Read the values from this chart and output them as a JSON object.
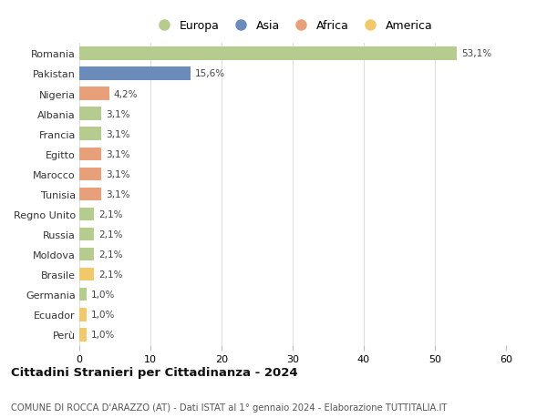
{
  "countries": [
    "Romania",
    "Pakistan",
    "Nigeria",
    "Albania",
    "Francia",
    "Egitto",
    "Marocco",
    "Tunisia",
    "Regno Unito",
    "Russia",
    "Moldova",
    "Brasile",
    "Germania",
    "Ecuador",
    "Perù"
  ],
  "values": [
    53.1,
    15.6,
    4.2,
    3.1,
    3.1,
    3.1,
    3.1,
    3.1,
    2.1,
    2.1,
    2.1,
    2.1,
    1.0,
    1.0,
    1.0
  ],
  "labels": [
    "53,1%",
    "15,6%",
    "4,2%",
    "3,1%",
    "3,1%",
    "3,1%",
    "3,1%",
    "3,1%",
    "2,1%",
    "2,1%",
    "2,1%",
    "2,1%",
    "1,0%",
    "1,0%",
    "1,0%"
  ],
  "continents": [
    "Europa",
    "Asia",
    "Africa",
    "Europa",
    "Europa",
    "Africa",
    "Africa",
    "Africa",
    "Europa",
    "Europa",
    "Europa",
    "America",
    "Europa",
    "America",
    "America"
  ],
  "colors": {
    "Europa": "#b5cc8e",
    "Asia": "#6b8cba",
    "Africa": "#e8a07a",
    "America": "#f0c96a"
  },
  "legend_order": [
    "Europa",
    "Asia",
    "Africa",
    "America"
  ],
  "title": "Cittadini Stranieri per Cittadinanza - 2024",
  "subtitle": "COMUNE DI ROCCA D'ARAZZO (AT) - Dati ISTAT al 1° gennaio 2024 - Elaborazione TUTTITALIA.IT",
  "xlim": [
    0,
    60
  ],
  "xticks": [
    0,
    10,
    20,
    30,
    40,
    50,
    60
  ],
  "background_color": "#ffffff",
  "grid_color": "#dddddd"
}
